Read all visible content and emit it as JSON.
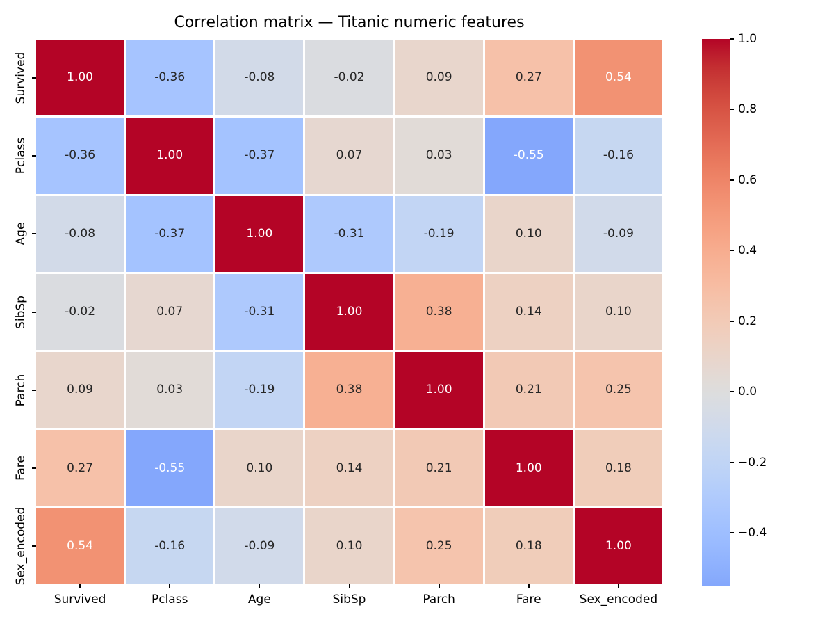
{
  "title": "Correlation matrix — Titanic numeric features",
  "chart_data": {
    "type": "heatmap",
    "title": "Correlation matrix — Titanic numeric features",
    "categories": [
      "Survived",
      "Pclass",
      "Age",
      "SibSp",
      "Parch",
      "Fare",
      "Sex_encoded"
    ],
    "matrix": [
      [
        1.0,
        -0.36,
        -0.08,
        -0.02,
        0.09,
        0.27,
        0.54
      ],
      [
        -0.36,
        1.0,
        -0.37,
        0.07,
        0.03,
        -0.55,
        -0.16
      ],
      [
        -0.08,
        -0.37,
        1.0,
        -0.31,
        -0.19,
        0.1,
        -0.09
      ],
      [
        -0.02,
        0.07,
        -0.31,
        1.0,
        0.38,
        0.14,
        0.1
      ],
      [
        0.09,
        0.03,
        -0.19,
        0.38,
        1.0,
        0.21,
        0.25
      ],
      [
        0.27,
        -0.55,
        0.1,
        0.14,
        0.21,
        1.0,
        0.18
      ],
      [
        0.54,
        -0.16,
        -0.09,
        0.1,
        0.25,
        0.18,
        1.0
      ]
    ],
    "value_format": "0.00",
    "colormap": "coolwarm",
    "center": 0,
    "vmin": -0.55,
    "vmax": 1.0,
    "grid": "white cell borders",
    "legend_position": "right colorbar",
    "colorbar_ticks": [
      {
        "label": "1.0",
        "value": 1.0
      },
      {
        "label": "0.8",
        "value": 0.8
      },
      {
        "label": "0.6",
        "value": 0.6
      },
      {
        "label": "0.4",
        "value": 0.4
      },
      {
        "label": "0.2",
        "value": 0.2
      },
      {
        "label": "0.0",
        "value": 0.0
      },
      {
        "label": "−0.2",
        "value": -0.2
      },
      {
        "label": "−0.4",
        "value": -0.4
      }
    ],
    "colors": {
      "max_red": "#b40426",
      "mid_gray": "#dddddd",
      "min_blue_shown": "#84a7fc",
      "annot_dark": "#262626",
      "annot_light": "#ffffff",
      "gridline": "#ffffff",
      "tick_color": "#000000"
    }
  }
}
